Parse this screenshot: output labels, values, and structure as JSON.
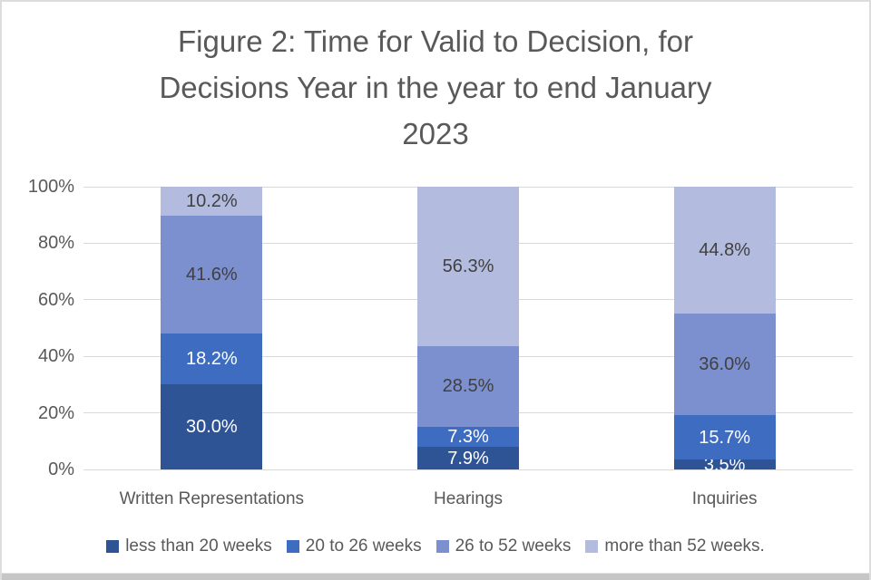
{
  "chart_data": {
    "type": "bar",
    "stacked": true,
    "title": "Figure 2: Time for Valid to Decision, for Decisions Year in the year to end January 2023",
    "title_lines": [
      "Figure 2: Time for Valid to Decision, for",
      "Decisions Year in the year to end January",
      "2023"
    ],
    "categories": [
      "Written Representations",
      "Hearings",
      "Inquiries"
    ],
    "series": [
      {
        "name": "less than 20 weeks",
        "color": "#2F5496",
        "label_color": "#FFFFFF",
        "values": [
          30.0,
          7.9,
          3.5
        ]
      },
      {
        "name": "20 to 26 weeks",
        "color": "#3D6CC0",
        "label_color": "#FFFFFF",
        "values": [
          18.2,
          7.3,
          15.7
        ]
      },
      {
        "name": "26 to 52 weeks",
        "color": "#7C8FCF",
        "label_color": "#404040",
        "values": [
          41.6,
          28.5,
          36.0
        ]
      },
      {
        "name": "more than 52 weeks.",
        "color": "#B3BCDF",
        "label_color": "#404040",
        "values": [
          10.2,
          56.3,
          44.8
        ]
      }
    ],
    "y_ticks": [
      "0%",
      "20%",
      "40%",
      "60%",
      "80%",
      "100%"
    ],
    "ylim": [
      0,
      100
    ],
    "grid": true,
    "legend_position": "bottom",
    "label_format": "one_decimal_percent",
    "colors": {
      "title_text": "#595959",
      "axis_text": "#595959",
      "gridline": "#D9D9D9"
    }
  }
}
